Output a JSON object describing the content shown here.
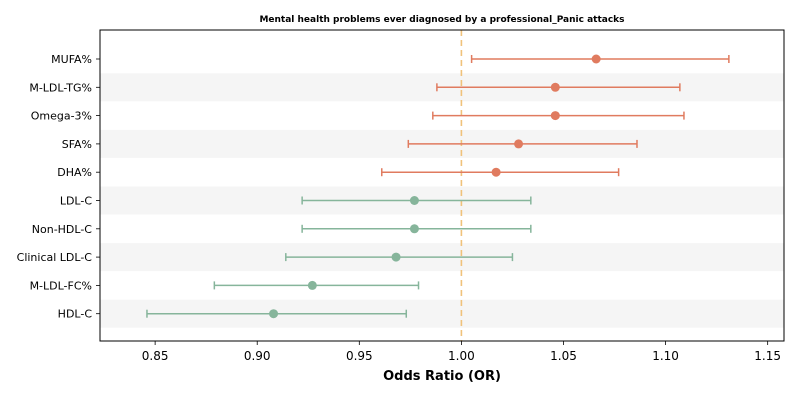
{
  "chart_data": {
    "type": "forest",
    "title": "Mental health problems ever diagnosed by a professional_Panic attacks",
    "xlabel": "Odds Ratio (OR)",
    "xlim": [
      0.823,
      1.158
    ],
    "xticks": [
      0.85,
      0.9,
      0.95,
      1.0,
      1.05,
      1.1,
      1.15
    ],
    "xtick_labels": [
      "0.85",
      "0.90",
      "0.95",
      "1.00",
      "1.05",
      "1.10",
      "1.15"
    ],
    "reference_line": 1.0,
    "grid": false,
    "alternating_row_shading": true,
    "colors": {
      "positive": "#e07b5f",
      "negative": "#86b59b",
      "reference": "#f0c27b",
      "row_shade": "#f5f5f5"
    },
    "rows": [
      {
        "label": "MUFA%",
        "or": 1.066,
        "lower": 1.005,
        "upper": 1.131
      },
      {
        "label": "M-LDL-TG%",
        "or": 1.046,
        "lower": 0.988,
        "upper": 1.107
      },
      {
        "label": "Omega-3%",
        "or": 1.046,
        "lower": 0.986,
        "upper": 1.109
      },
      {
        "label": "SFA%",
        "or": 1.028,
        "lower": 0.974,
        "upper": 1.086
      },
      {
        "label": "DHA%",
        "or": 1.017,
        "lower": 0.961,
        "upper": 1.077
      },
      {
        "label": "LDL-C",
        "or": 0.977,
        "lower": 0.922,
        "upper": 1.034
      },
      {
        "label": "Non-HDL-C",
        "or": 0.977,
        "lower": 0.922,
        "upper": 1.034
      },
      {
        "label": "Clinical LDL-C",
        "or": 0.968,
        "lower": 0.914,
        "upper": 1.025
      },
      {
        "label": "M-LDL-FC%",
        "or": 0.927,
        "lower": 0.879,
        "upper": 0.979
      },
      {
        "label": "HDL-C",
        "or": 0.908,
        "lower": 0.846,
        "upper": 0.973
      }
    ]
  }
}
